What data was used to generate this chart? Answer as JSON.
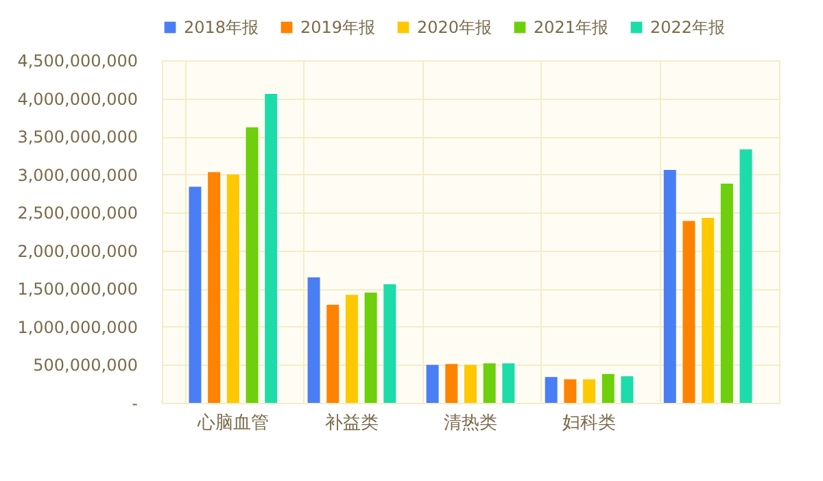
{
  "chart_data": {
    "type": "bar",
    "categories": [
      "心脑血管",
      "补益类",
      "清热类",
      "妇科类",
      null
    ],
    "series": [
      {
        "name": "2018年报",
        "color": "#4a7ef5",
        "values": [
          2840000000,
          1650000000,
          500000000,
          340000000,
          3060000000
        ]
      },
      {
        "name": "2019年报",
        "color": "#ff8200",
        "values": [
          3030000000,
          1290000000,
          510000000,
          310000000,
          2390000000
        ]
      },
      {
        "name": "2020年报",
        "color": "#ffc800",
        "values": [
          3000000000,
          1420000000,
          500000000,
          310000000,
          2430000000
        ]
      },
      {
        "name": "2021年报",
        "color": "#6ecf0c",
        "values": [
          3620000000,
          1450000000,
          520000000,
          380000000,
          2880000000
        ]
      },
      {
        "name": "2022年报",
        "color": "#1cdcaa",
        "values": [
          4060000000,
          1560000000,
          520000000,
          350000000,
          3330000000
        ]
      }
    ],
    "ylim": [
      0,
      4500000000
    ],
    "yticks": [
      {
        "value": 0,
        "label": "-"
      },
      {
        "value": 500000000,
        "label": "500,000,000"
      },
      {
        "value": 1000000000,
        "label": "1,000,000,000"
      },
      {
        "value": 1500000000,
        "label": "1,500,000,000"
      },
      {
        "value": 2000000000,
        "label": "2,000,000,000"
      },
      {
        "value": 2500000000,
        "label": "2,500,000,000"
      },
      {
        "value": 3000000000,
        "label": "3,000,000,000"
      },
      {
        "value": 3500000000,
        "label": "3,500,000,000"
      },
      {
        "value": 4000000000,
        "label": "4,000,000,000"
      },
      {
        "value": 4500000000,
        "label": "4,500,000,000"
      }
    ],
    "grid": true,
    "legend": "top"
  }
}
